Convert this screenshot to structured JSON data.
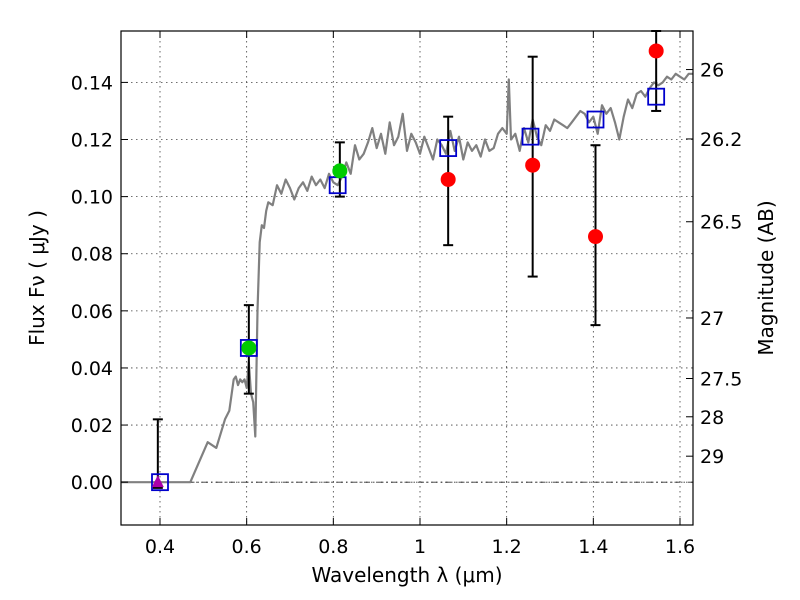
{
  "chart_data": {
    "type": "scatter",
    "title": "",
    "xlabel": "Wavelength  λ (μm)",
    "ylabel": "Flux  Fν ( μJy )",
    "y2label": "Magnitude (AB)",
    "xlim": [
      0.31,
      1.63
    ],
    "ylim": [
      -0.015,
      0.158
    ],
    "grid": true,
    "x_ticks": [
      0.4,
      0.6,
      0.8,
      1.0,
      1.2,
      1.4,
      1.6
    ],
    "x_tick_labels": [
      "0.4",
      "0.6",
      "0.8",
      "1",
      "1.2",
      "1.4",
      "1.6"
    ],
    "y_ticks": [
      0.0,
      0.02,
      0.04,
      0.06,
      0.08,
      0.1,
      0.12,
      0.14
    ],
    "y_tick_labels": [
      "0.00",
      "0.02",
      "0.04",
      "0.06",
      "0.08",
      "0.10",
      "0.12",
      "0.14"
    ],
    "y2_ticks": [
      {
        "label": "26",
        "flux": 0.1445
      },
      {
        "label": "26.2",
        "flux": 0.1202
      },
      {
        "label": "26.5",
        "flux": 0.0912
      },
      {
        "label": "27",
        "flux": 0.0575
      },
      {
        "label": "27.5",
        "flux": 0.0363
      },
      {
        "label": "28",
        "flux": 0.0229
      },
      {
        "label": "29",
        "flux": 0.0091
      }
    ],
    "zero_line": 0.0,
    "series": [
      {
        "name": "model spectrum",
        "kind": "line",
        "color": "#808080",
        "x": [
          0.31,
          0.33,
          0.36,
          0.39,
          0.42,
          0.45,
          0.47,
          0.49,
          0.51,
          0.53,
          0.55,
          0.56,
          0.57,
          0.575,
          0.58,
          0.585,
          0.59,
          0.595,
          0.6,
          0.605,
          0.61,
          0.615,
          0.62,
          0.625,
          0.63,
          0.635,
          0.64,
          0.645,
          0.65,
          0.66,
          0.67,
          0.68,
          0.69,
          0.7,
          0.71,
          0.72,
          0.73,
          0.74,
          0.75,
          0.76,
          0.77,
          0.78,
          0.79,
          0.8,
          0.81,
          0.82,
          0.83,
          0.84,
          0.85,
          0.86,
          0.87,
          0.88,
          0.89,
          0.9,
          0.91,
          0.92,
          0.93,
          0.94,
          0.95,
          0.96,
          0.97,
          0.98,
          0.99,
          1.0,
          1.01,
          1.02,
          1.03,
          1.04,
          1.05,
          1.06,
          1.07,
          1.08,
          1.09,
          1.1,
          1.11,
          1.12,
          1.13,
          1.14,
          1.15,
          1.16,
          1.17,
          1.18,
          1.19,
          1.2,
          1.205,
          1.21,
          1.22,
          1.23,
          1.24,
          1.25,
          1.26,
          1.27,
          1.28,
          1.29,
          1.3,
          1.31,
          1.32,
          1.33,
          1.34,
          1.35,
          1.36,
          1.37,
          1.38,
          1.39,
          1.4,
          1.41,
          1.42,
          1.43,
          1.44,
          1.45,
          1.46,
          1.47,
          1.48,
          1.49,
          1.5,
          1.51,
          1.52,
          1.53,
          1.54,
          1.55,
          1.56,
          1.57,
          1.58,
          1.59,
          1.6,
          1.61,
          1.62,
          1.63
        ],
        "y": [
          0.0,
          0.0,
          0.0,
          0.0,
          0.0,
          0.0,
          0.0,
          0.007,
          0.014,
          0.012,
          0.022,
          0.025,
          0.036,
          0.037,
          0.034,
          0.036,
          0.035,
          0.036,
          0.033,
          0.042,
          0.031,
          0.028,
          0.016,
          0.06,
          0.084,
          0.09,
          0.089,
          0.095,
          0.098,
          0.097,
          0.104,
          0.101,
          0.106,
          0.103,
          0.099,
          0.103,
          0.105,
          0.102,
          0.107,
          0.104,
          0.106,
          0.103,
          0.108,
          0.105,
          0.104,
          0.107,
          0.112,
          0.108,
          0.118,
          0.113,
          0.115,
          0.119,
          0.124,
          0.117,
          0.122,
          0.115,
          0.126,
          0.118,
          0.121,
          0.129,
          0.116,
          0.122,
          0.119,
          0.115,
          0.121,
          0.117,
          0.113,
          0.12,
          0.118,
          0.115,
          0.123,
          0.116,
          0.121,
          0.113,
          0.119,
          0.116,
          0.118,
          0.114,
          0.12,
          0.116,
          0.117,
          0.122,
          0.124,
          0.122,
          0.141,
          0.12,
          0.122,
          0.116,
          0.124,
          0.119,
          0.127,
          0.121,
          0.118,
          0.125,
          0.123,
          0.127,
          0.126,
          0.125,
          0.124,
          0.126,
          0.128,
          0.13,
          0.129,
          0.126,
          0.128,
          0.122,
          0.132,
          0.129,
          0.131,
          0.126,
          0.12,
          0.128,
          0.134,
          0.131,
          0.136,
          0.137,
          0.135,
          0.138,
          0.14,
          0.139,
          0.14,
          0.142,
          0.141,
          0.143,
          0.142,
          0.141,
          0.143,
          0.143
        ]
      },
      {
        "name": "model photometry",
        "kind": "open-square",
        "color": "#0000cc",
        "x": [
          0.4,
          0.605,
          0.81,
          1.065,
          1.255,
          1.405,
          1.545
        ],
        "y": [
          0.0,
          0.047,
          0.104,
          0.117,
          0.121,
          0.127,
          0.135
        ]
      },
      {
        "name": "observed flux (green)",
        "kind": "filled-circle",
        "color": "#00cc00",
        "x": [
          0.605,
          0.815
        ],
        "y": [
          0.047,
          0.109
        ],
        "yerr_low": [
          0.031,
          0.1
        ],
        "yerr_high": [
          0.062,
          0.119
        ]
      },
      {
        "name": "observed flux (red)",
        "kind": "filled-circle",
        "color": "#ff0000",
        "x": [
          1.065,
          1.26,
          1.405,
          1.545
        ],
        "y": [
          0.106,
          0.111,
          0.086,
          0.151
        ],
        "yerr_low": [
          0.083,
          0.072,
          0.055,
          0.13
        ],
        "yerr_high": [
          0.128,
          0.149,
          0.118,
          0.158
        ]
      },
      {
        "name": "upper limit",
        "kind": "triangle",
        "color": "#aa00aa",
        "x": [
          0.395
        ],
        "y": [
          0.0
        ],
        "yerr_low": [
          -0.002
        ],
        "yerr_high": [
          0.022
        ]
      }
    ]
  }
}
